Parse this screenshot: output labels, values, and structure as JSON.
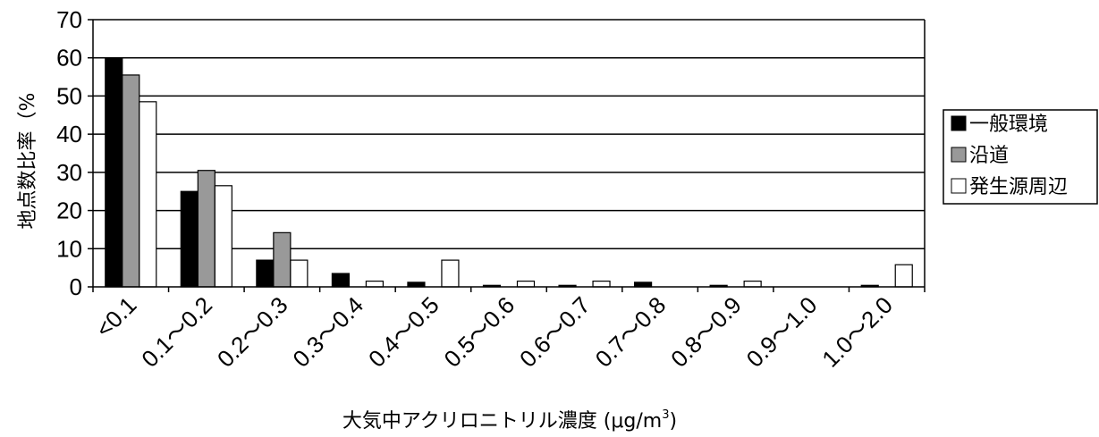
{
  "chart_data": {
    "type": "bar",
    "categories": [
      "<0.1",
      "0.1～0.2",
      "0.2～0.3",
      "0.3～0.4",
      "0.4～0.5",
      "0.5～0.6",
      "0.6～0.7",
      "0.7～0.8",
      "0.8～0.9",
      "0.9～1.0",
      "1.0～2.0"
    ],
    "series": [
      {
        "name": "一般環境",
        "color": "#000000",
        "values": [
          60,
          25,
          7,
          3.5,
          1.2,
          0.4,
          0.4,
          1.2,
          0.4,
          0,
          0.4
        ]
      },
      {
        "name": "沿道",
        "color": "#999999",
        "values": [
          55.5,
          30.5,
          14.2,
          0,
          0,
          0,
          0,
          0,
          0,
          0,
          0
        ]
      },
      {
        "name": "発生源周辺",
        "color": "#ffffff",
        "values": [
          48.5,
          26.5,
          7,
          1.5,
          7,
          1.5,
          1.5,
          0,
          1.5,
          0,
          5.8
        ]
      }
    ],
    "ylim": [
      0,
      70
    ],
    "yticks": [
      0,
      10,
      20,
      30,
      40,
      50,
      60,
      70
    ],
    "ylabel": "地点数比率（%",
    "xlabel": "大気中アクリロニトリル濃度 (μg/m",
    "xlabel_sup": "3",
    "xlabel_close": ")",
    "grid": true,
    "legend_position": "right"
  }
}
